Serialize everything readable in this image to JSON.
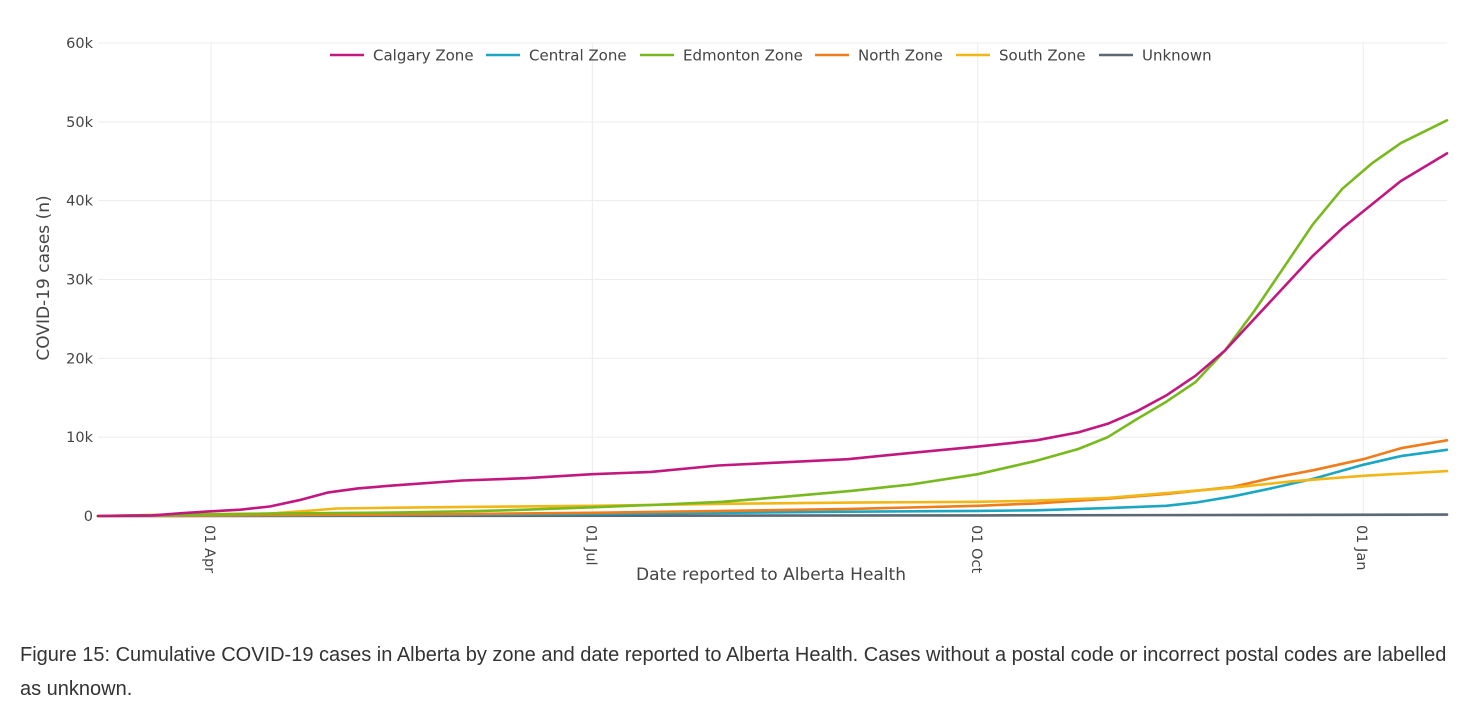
{
  "caption": "Figure 15: Cumulative COVID-19 cases in Alberta by zone and date reported to Alberta Health. Cases without a postal code or incorrect postal codes are labelled as unknown.",
  "chart_data": {
    "type": "line",
    "title": "",
    "xlabel": "Date reported to Alberta Health",
    "ylabel": "COVID-19 cases (n)",
    "x_ticks": [
      {
        "date": "2020-04-01",
        "label": "01 Apr"
      },
      {
        "date": "2020-07-01",
        "label": "01 Jul"
      },
      {
        "date": "2020-10-01",
        "label": "01 Oct"
      },
      {
        "date": "2021-01-01",
        "label": "01 Jan"
      }
    ],
    "y_ticks": [
      {
        "value": 0,
        "label": "0"
      },
      {
        "value": 10000,
        "label": "10k"
      },
      {
        "value": 20000,
        "label": "20k"
      },
      {
        "value": 30000,
        "label": "30k"
      },
      {
        "value": 40000,
        "label": "40k"
      },
      {
        "value": 50000,
        "label": "50k"
      },
      {
        "value": 60000,
        "label": "60k"
      }
    ],
    "xlim": [
      "2020-03-05",
      "2021-01-21"
    ],
    "ylim": [
      0,
      60000
    ],
    "grid": true,
    "legend_position": "top",
    "series": [
      {
        "name": "Calgary Zone",
        "color": "#c2177f",
        "points": [
          [
            "2020-03-05",
            0
          ],
          [
            "2020-03-18",
            80
          ],
          [
            "2020-03-25",
            350
          ],
          [
            "2020-04-01",
            600
          ],
          [
            "2020-04-08",
            800
          ],
          [
            "2020-04-15",
            1200
          ],
          [
            "2020-04-22",
            2000
          ],
          [
            "2020-04-29",
            3000
          ],
          [
            "2020-05-06",
            3500
          ],
          [
            "2020-05-15",
            3900
          ],
          [
            "2020-05-31",
            4500
          ],
          [
            "2020-06-15",
            4800
          ],
          [
            "2020-07-01",
            5300
          ],
          [
            "2020-07-15",
            5600
          ],
          [
            "2020-07-31",
            6400
          ],
          [
            "2020-08-15",
            6800
          ],
          [
            "2020-08-31",
            7200
          ],
          [
            "2020-09-15",
            8000
          ],
          [
            "2020-10-01",
            8800
          ],
          [
            "2020-10-15",
            9600
          ],
          [
            "2020-10-25",
            10600
          ],
          [
            "2020-11-01",
            11700
          ],
          [
            "2020-11-08",
            13300
          ],
          [
            "2020-11-15",
            15300
          ],
          [
            "2020-11-22",
            17800
          ],
          [
            "2020-11-29",
            21000
          ],
          [
            "2020-12-06",
            25000
          ],
          [
            "2020-12-13",
            29000
          ],
          [
            "2020-12-20",
            33000
          ],
          [
            "2020-12-27",
            36500
          ],
          [
            "2021-01-03",
            39500
          ],
          [
            "2021-01-10",
            42500
          ],
          [
            "2021-01-21",
            46000
          ]
        ]
      },
      {
        "name": "Central Zone",
        "color": "#1ba7c4",
        "points": [
          [
            "2020-03-05",
            0
          ],
          [
            "2020-04-01",
            40
          ],
          [
            "2020-05-01",
            120
          ],
          [
            "2020-06-01",
            180
          ],
          [
            "2020-07-01",
            250
          ],
          [
            "2020-08-01",
            400
          ],
          [
            "2020-09-01",
            550
          ],
          [
            "2020-10-01",
            650
          ],
          [
            "2020-10-15",
            720
          ],
          [
            "2020-11-01",
            1000
          ],
          [
            "2020-11-15",
            1300
          ],
          [
            "2020-11-22",
            1700
          ],
          [
            "2020-12-01",
            2500
          ],
          [
            "2020-12-10",
            3500
          ],
          [
            "2020-12-20",
            4700
          ],
          [
            "2021-01-01",
            6500
          ],
          [
            "2021-01-10",
            7600
          ],
          [
            "2021-01-21",
            8400
          ]
        ]
      },
      {
        "name": "Edmonton Zone",
        "color": "#78b91d",
        "points": [
          [
            "2020-03-05",
            0
          ],
          [
            "2020-03-25",
            150
          ],
          [
            "2020-04-15",
            300
          ],
          [
            "2020-05-15",
            450
          ],
          [
            "2020-06-01",
            600
          ],
          [
            "2020-06-15",
            800
          ],
          [
            "2020-07-01",
            1100
          ],
          [
            "2020-07-15",
            1400
          ],
          [
            "2020-08-01",
            1800
          ],
          [
            "2020-08-15",
            2400
          ],
          [
            "2020-09-01",
            3200
          ],
          [
            "2020-09-15",
            4000
          ],
          [
            "2020-10-01",
            5300
          ],
          [
            "2020-10-15",
            7000
          ],
          [
            "2020-10-25",
            8500
          ],
          [
            "2020-11-01",
            10000
          ],
          [
            "2020-11-08",
            12300
          ],
          [
            "2020-11-15",
            14500
          ],
          [
            "2020-11-22",
            17000
          ],
          [
            "2020-11-29",
            21000
          ],
          [
            "2020-12-06",
            26000
          ],
          [
            "2020-12-13",
            31500
          ],
          [
            "2020-12-20",
            37000
          ],
          [
            "2020-12-27",
            41500
          ],
          [
            "2021-01-03",
            44700
          ],
          [
            "2021-01-10",
            47300
          ],
          [
            "2021-01-21",
            50200
          ]
        ]
      },
      {
        "name": "North Zone",
        "color": "#f07d1c",
        "points": [
          [
            "2020-03-05",
            0
          ],
          [
            "2020-04-01",
            80
          ],
          [
            "2020-05-01",
            150
          ],
          [
            "2020-06-01",
            250
          ],
          [
            "2020-07-01",
            400
          ],
          [
            "2020-08-01",
            650
          ],
          [
            "2020-09-01",
            900
          ],
          [
            "2020-10-01",
            1300
          ],
          [
            "2020-10-15",
            1600
          ],
          [
            "2020-11-01",
            2200
          ],
          [
            "2020-11-15",
            2800
          ],
          [
            "2020-12-01",
            3700
          ],
          [
            "2020-12-10",
            4800
          ],
          [
            "2020-12-20",
            5800
          ],
          [
            "2021-01-01",
            7200
          ],
          [
            "2021-01-10",
            8600
          ],
          [
            "2021-01-21",
            9600
          ]
        ]
      },
      {
        "name": "South Zone",
        "color": "#f2b616",
        "points": [
          [
            "2020-03-05",
            0
          ],
          [
            "2020-03-25",
            200
          ],
          [
            "2020-04-15",
            300
          ],
          [
            "2020-04-25",
            700
          ],
          [
            "2020-05-01",
            950
          ],
          [
            "2020-05-15",
            1050
          ],
          [
            "2020-06-01",
            1150
          ],
          [
            "2020-07-01",
            1300
          ],
          [
            "2020-08-01",
            1550
          ],
          [
            "2020-09-01",
            1700
          ],
          [
            "2020-10-01",
            1800
          ],
          [
            "2020-10-15",
            1950
          ],
          [
            "2020-11-01",
            2300
          ],
          [
            "2020-11-15",
            2900
          ],
          [
            "2020-12-01",
            3600
          ],
          [
            "2020-12-15",
            4400
          ],
          [
            "2021-01-01",
            5100
          ],
          [
            "2021-01-21",
            5700
          ]
        ]
      },
      {
        "name": "Unknown",
        "color": "#5c6874",
        "points": [
          [
            "2020-03-05",
            0
          ],
          [
            "2020-06-01",
            30
          ],
          [
            "2020-10-01",
            80
          ],
          [
            "2021-01-21",
            180
          ]
        ]
      }
    ]
  }
}
